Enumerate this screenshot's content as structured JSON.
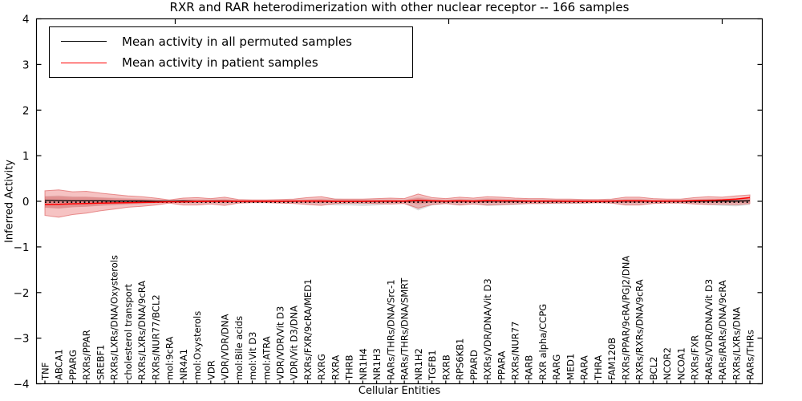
{
  "chart_data": {
    "type": "line",
    "title": "RXR and RAR heterodimerization with other nuclear receptor -- 166 samples",
    "xlabel": "Cellular Entities",
    "ylabel": "Inferred Activity",
    "ylim": [
      -4,
      4
    ],
    "ytick_values": [
      4,
      3,
      2,
      1,
      0,
      -1,
      -2,
      -3,
      -4
    ],
    "ytick_labels": [
      "4",
      "3",
      "2",
      "1",
      "0",
      "−1",
      "−2",
      "−3",
      "−4"
    ],
    "grid": false,
    "legend_position": "upper left",
    "categories": [
      "TNF",
      "ABCA1",
      "PPARG",
      "RXRs/PPAR",
      "SREBF1",
      "RXRs/LXRs/DNA/Oxysterols",
      "cholesterol transport",
      "RXRs/LXRs/DNA/9cRA",
      "RXRs/NUR77/BCL2",
      "mol:9cRA",
      "NR4A1",
      "mol:Oxysterols",
      "VDR",
      "VDR/VDR/DNA",
      "mol:Bile acids",
      "mol:Vit D3",
      "mol:ATRA",
      "VDR/VDR/Vit D3",
      "VDR/Vit D3/DNA",
      "RXRs/FXR/9cRA/MED1",
      "RXRG",
      "RXRA",
      "THRB",
      "NR1H4",
      "NR1H3",
      "RARs/THRs/DNA/Src-1",
      "RARs/THRs/DNA/SMRT",
      "NR1H2",
      "TGFB1",
      "RXRB",
      "RPS6KB1",
      "PPARD",
      "RXRs/VDR/DNA/Vit D3",
      "PPARA",
      "RXRs/NUR77",
      "RARB",
      "RXR alpha/CCPG",
      "RARG",
      "MED1",
      "RARA",
      "THRA",
      "FAM120B",
      "RXRs/PPAR/9cRA/PGJ2/DNA",
      "RXRs/RXRs/DNA/9cRA",
      "BCL2",
      "NCOR2",
      "NCOA1",
      "RXRs/FXR",
      "RARs/VDR/DNA/Vit D3",
      "RARs/RARs/DNA/9cRA",
      "RXRs/LXRs/DNA",
      "RARs/THRs"
    ],
    "series": [
      {
        "name": "Mean activity in all permuted samples",
        "color": "#000000",
        "band_color": "#8a8a8a",
        "values": [
          0.02,
          0.015,
          0.01,
          0.01,
          0.01,
          0.005,
          0.005,
          0.005,
          0,
          0,
          0.005,
          0,
          0.005,
          0.005,
          0,
          0,
          0,
          0,
          0,
          0.005,
          0,
          0,
          0,
          0,
          0,
          0,
          0,
          0.01,
          0.005,
          0,
          0.005,
          0,
          0.005,
          0.005,
          0,
          0,
          0,
          0,
          0,
          0,
          0,
          0,
          0.005,
          0.005,
          0,
          0,
          0,
          0,
          0.005,
          0.005,
          0.005,
          0.01
        ],
        "band_upper": [
          0.12,
          0.13,
          0.11,
          0.1,
          0.09,
          0.08,
          0.07,
          0.06,
          0.05,
          0.03,
          0.05,
          0.05,
          0.05,
          0.06,
          0.03,
          0.03,
          0.03,
          0.03,
          0.04,
          0.05,
          0.06,
          0.06,
          0.05,
          0.05,
          0.05,
          0.05,
          0.04,
          0.1,
          0.06,
          0.04,
          0.06,
          0.05,
          0.07,
          0.06,
          0.05,
          0.05,
          0.05,
          0.04,
          0.04,
          0.04,
          0.03,
          0.04,
          0.06,
          0.06,
          0.04,
          0.04,
          0.04,
          0.05,
          0.06,
          0.06,
          0.07,
          0.06
        ],
        "band_lower": [
          -0.14,
          -0.16,
          -0.13,
          -0.12,
          -0.1,
          -0.09,
          -0.08,
          -0.07,
          -0.05,
          -0.03,
          -0.05,
          -0.06,
          -0.05,
          -0.06,
          -0.04,
          -0.03,
          -0.03,
          -0.04,
          -0.04,
          -0.06,
          -0.07,
          -0.09,
          -0.09,
          -0.1,
          -0.09,
          -0.06,
          -0.05,
          -0.2,
          -0.09,
          -0.06,
          -0.09,
          -0.06,
          -0.1,
          -0.09,
          -0.08,
          -0.06,
          -0.06,
          -0.06,
          -0.06,
          -0.05,
          -0.04,
          -0.05,
          -0.07,
          -0.07,
          -0.05,
          -0.04,
          -0.04,
          -0.06,
          -0.08,
          -0.1,
          -0.11,
          -0.08
        ]
      },
      {
        "name": "Mean activity in patient samples",
        "color": "#ff0000",
        "band_color": "#ee8888",
        "values": [
          -0.07,
          -0.065,
          -0.055,
          -0.05,
          -0.04,
          -0.035,
          -0.03,
          -0.025,
          -0.02,
          -0.01,
          -0.01,
          -0.005,
          0,
          0,
          0,
          0,
          0,
          0,
          0.005,
          0.005,
          0.005,
          0,
          0,
          0,
          0.005,
          0.005,
          0.005,
          0.02,
          0.01,
          0.005,
          0.01,
          0.005,
          0.015,
          0.01,
          0.01,
          0.005,
          0.005,
          0.005,
          0,
          0,
          0,
          0.005,
          0.01,
          0.01,
          0.005,
          0.005,
          0.005,
          0.015,
          0.02,
          0.03,
          0.05,
          0.08
        ],
        "band_upper": [
          0.23,
          0.25,
          0.21,
          0.22,
          0.18,
          0.15,
          0.12,
          0.1,
          0.07,
          0.03,
          0.07,
          0.08,
          0.06,
          0.09,
          0.04,
          0.03,
          0.03,
          0.04,
          0.05,
          0.08,
          0.1,
          0.05,
          0.05,
          0.05,
          0.06,
          0.07,
          0.06,
          0.16,
          0.08,
          0.06,
          0.09,
          0.07,
          0.1,
          0.09,
          0.07,
          0.06,
          0.06,
          0.05,
          0.05,
          0.04,
          0.04,
          0.05,
          0.09,
          0.09,
          0.06,
          0.05,
          0.05,
          0.08,
          0.1,
          0.09,
          0.12,
          0.14
        ],
        "band_lower": [
          -0.31,
          -0.35,
          -0.29,
          -0.26,
          -0.21,
          -0.17,
          -0.13,
          -0.11,
          -0.08,
          -0.04,
          -0.08,
          -0.08,
          -0.06,
          -0.09,
          -0.04,
          -0.03,
          -0.03,
          -0.04,
          -0.05,
          -0.07,
          -0.09,
          -0.05,
          -0.04,
          -0.04,
          -0.05,
          -0.06,
          -0.05,
          -0.15,
          -0.07,
          -0.05,
          -0.08,
          -0.06,
          -0.08,
          -0.07,
          -0.06,
          -0.05,
          -0.05,
          -0.04,
          -0.04,
          -0.04,
          -0.03,
          -0.04,
          -0.08,
          -0.08,
          -0.05,
          -0.04,
          -0.04,
          -0.06,
          -0.07,
          -0.06,
          -0.07,
          -0.05
        ]
      }
    ],
    "baseline": {
      "value": -0.02,
      "style": "dotted",
      "color": "#000000"
    }
  },
  "legend": {
    "items": [
      {
        "label": "Mean activity in all permuted samples",
        "color": "#000000"
      },
      {
        "label": "Mean activity in patient samples",
        "color": "#ff0000"
      }
    ]
  }
}
